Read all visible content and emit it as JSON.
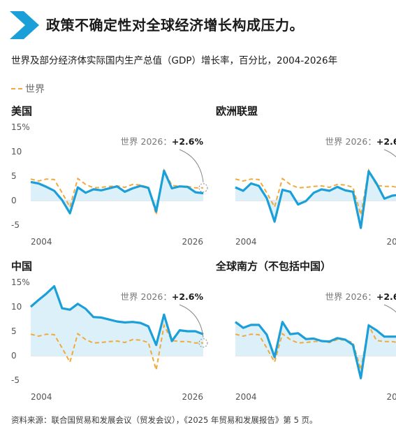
{
  "title": "政策不确定性对全球经济增长构成压力。",
  "subtitle": "世界及部分经济体实际国内生产总值（GDP）增长率，百分比，2004-2026年",
  "legend": {
    "label": "世界"
  },
  "source": "资料来源：联合国贸易和发展会议（贸发会议），《2025 年贸易和发展报告》第 5 页。",
  "colors": {
    "accent": "#1a9fd8",
    "world": "#f2a93b",
    "fill": "#dcf0f9",
    "chevron": "#1a9fd8"
  },
  "chart_data": [
    {
      "type": "area",
      "title": "美国",
      "x_tick_labels": [
        "2004",
        "2026"
      ],
      "y_ticks": [
        "15%",
        "10",
        "5",
        "0",
        "-5"
      ],
      "ylim": [
        -5,
        15
      ],
      "annotation": {
        "prefix": "世界 2026：",
        "value": "+2.6%"
      },
      "x": [
        2004,
        2005,
        2006,
        2007,
        2008,
        2009,
        2010,
        2011,
        2012,
        2013,
        2014,
        2015,
        2016,
        2017,
        2018,
        2019,
        2020,
        2021,
        2022,
        2023,
        2024,
        2025,
        2026
      ],
      "series": [
        {
          "values": [
            3.8,
            3.5,
            2.8,
            2.0,
            0.1,
            -2.6,
            2.7,
            1.6,
            2.3,
            2.1,
            2.5,
            2.9,
            1.8,
            2.5,
            3.0,
            2.6,
            -2.2,
            6.1,
            2.5,
            2.9,
            2.8,
            1.7,
            1.5
          ]
        },
        {
          "name": "世界",
          "values": [
            4.4,
            4.0,
            4.4,
            4.3,
            1.6,
            -1.3,
            4.5,
            3.3,
            2.6,
            2.7,
            2.9,
            3.0,
            2.7,
            3.3,
            3.2,
            2.7,
            -2.9,
            6.2,
            3.1,
            2.9,
            2.9,
            2.6,
            2.6
          ]
        }
      ]
    },
    {
      "type": "area",
      "title": "欧洲联盟",
      "x_tick_labels": [
        "2004",
        "2026"
      ],
      "y_ticks": [
        "",
        "",
        "",
        "",
        ""
      ],
      "ylim": [
        -5,
        15
      ],
      "annotation": {
        "prefix": "世界 2026：",
        "value": "+2.6%"
      },
      "x": [
        2004,
        2005,
        2006,
        2007,
        2008,
        2009,
        2010,
        2011,
        2012,
        2013,
        2014,
        2015,
        2016,
        2017,
        2018,
        2019,
        2020,
        2021,
        2022,
        2023,
        2024,
        2025,
        2026
      ],
      "series": [
        {
          "values": [
            2.7,
            2.0,
            3.5,
            3.0,
            0.5,
            -4.3,
            2.2,
            1.8,
            -0.8,
            -0.1,
            1.6,
            2.3,
            2.0,
            2.8,
            2.1,
            1.8,
            -5.6,
            6.0,
            3.5,
            0.4,
            1.0,
            1.2,
            1.4
          ]
        },
        {
          "name": "世界",
          "values": [
            4.4,
            4.0,
            4.4,
            4.3,
            1.6,
            -1.3,
            4.5,
            3.3,
            2.6,
            2.7,
            2.9,
            3.0,
            2.7,
            3.3,
            3.2,
            2.7,
            -2.9,
            6.2,
            3.1,
            2.9,
            2.9,
            2.6,
            2.6
          ]
        }
      ]
    },
    {
      "type": "area",
      "title": "中国",
      "x_tick_labels": [
        "2004",
        "2026"
      ],
      "y_ticks": [
        "15%",
        "10",
        "5",
        "0",
        "-5"
      ],
      "ylim": [
        -5,
        15
      ],
      "annotation": {
        "prefix": "世界 2026：",
        "value": "+2.6%"
      },
      "x": [
        2004,
        2005,
        2006,
        2007,
        2008,
        2009,
        2010,
        2011,
        2012,
        2013,
        2014,
        2015,
        2016,
        2017,
        2018,
        2019,
        2020,
        2021,
        2022,
        2023,
        2024,
        2025,
        2026
      ],
      "series": [
        {
          "values": [
            10.0,
            11.4,
            12.7,
            14.2,
            9.7,
            9.4,
            10.6,
            9.6,
            7.9,
            7.8,
            7.4,
            7.0,
            6.8,
            6.9,
            6.7,
            6.0,
            2.2,
            8.4,
            3.0,
            5.2,
            5.0,
            5.0,
            4.4
          ]
        },
        {
          "name": "世界",
          "values": [
            4.4,
            4.0,
            4.4,
            4.3,
            1.6,
            -1.3,
            4.5,
            3.3,
            2.6,
            2.7,
            2.9,
            3.0,
            2.7,
            3.3,
            3.2,
            2.7,
            -2.9,
            6.2,
            3.1,
            2.9,
            2.9,
            2.6,
            2.6
          ]
        }
      ]
    },
    {
      "type": "area",
      "title": "全球南方（不包括中国）",
      "x_tick_labels": [
        "2004",
        "2026"
      ],
      "y_ticks": [
        "",
        "",
        "",
        "",
        ""
      ],
      "ylim": [
        -5,
        15
      ],
      "annotation": {
        "prefix": "世界 2026：",
        "value": "+2.6%"
      },
      "x": [
        2004,
        2005,
        2006,
        2007,
        2008,
        2009,
        2010,
        2011,
        2012,
        2013,
        2014,
        2015,
        2016,
        2017,
        2018,
        2019,
        2020,
        2021,
        2022,
        2023,
        2024,
        2025,
        2026
      ],
      "series": [
        {
          "values": [
            6.9,
            5.7,
            6.3,
            6.3,
            4.3,
            -0.3,
            6.9,
            4.4,
            4.6,
            3.4,
            3.5,
            3.0,
            2.9,
            3.6,
            3.3,
            2.2,
            -4.6,
            6.2,
            5.2,
            3.9,
            3.9,
            3.9,
            3.9
          ]
        },
        {
          "name": "世界",
          "values": [
            4.4,
            4.0,
            4.4,
            4.3,
            1.6,
            -1.3,
            4.5,
            3.3,
            2.6,
            2.7,
            2.9,
            3.0,
            2.7,
            3.3,
            3.2,
            2.7,
            -2.9,
            6.2,
            3.1,
            2.9,
            2.9,
            2.6,
            2.6
          ]
        }
      ]
    }
  ]
}
